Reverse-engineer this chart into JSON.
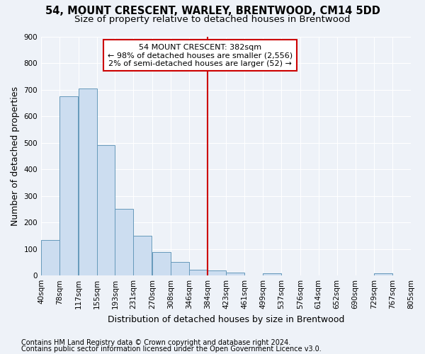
{
  "title": "54, MOUNT CRESCENT, WARLEY, BRENTWOOD, CM14 5DD",
  "subtitle": "Size of property relative to detached houses in Brentwood",
  "xlabel": "Distribution of detached houses by size in Brentwood",
  "ylabel": "Number of detached properties",
  "footnote1": "Contains HM Land Registry data © Crown copyright and database right 2024.",
  "footnote2": "Contains public sector information licensed under the Open Government Licence v3.0.",
  "bin_edges": [
    40,
    78,
    117,
    155,
    193,
    231,
    270,
    308,
    346,
    384,
    423,
    461,
    499,
    537,
    576,
    614,
    652,
    690,
    729,
    767,
    805
  ],
  "bin_labels": [
    "40sqm",
    "78sqm",
    "117sqm",
    "155sqm",
    "193sqm",
    "231sqm",
    "270sqm",
    "308sqm",
    "346sqm",
    "384sqm",
    "423sqm",
    "461sqm",
    "499sqm",
    "537sqm",
    "576sqm",
    "614sqm",
    "652sqm",
    "690sqm",
    "729sqm",
    "767sqm",
    "805sqm"
  ],
  "bar_heights": [
    135,
    675,
    705,
    490,
    250,
    150,
    88,
    50,
    22,
    18,
    10,
    0,
    8,
    0,
    0,
    0,
    0,
    0,
    8,
    0
  ],
  "bar_color": "#ccddf0",
  "bar_edge_color": "#6699bb",
  "vline_x": 384,
  "vline_color": "#cc0000",
  "annotation_text": "54 MOUNT CRESCENT: 382sqm\n← 98% of detached houses are smaller (2,556)\n2% of semi-detached houses are larger (52) →",
  "annotation_box_color": "#ffffff",
  "annotation_box_edge": "#cc0000",
  "ylim": [
    0,
    900
  ],
  "yticks": [
    0,
    100,
    200,
    300,
    400,
    500,
    600,
    700,
    800,
    900
  ],
  "bg_color": "#eef2f8",
  "grid_color": "#ffffff",
  "title_fontsize": 10.5,
  "subtitle_fontsize": 9.5,
  "axis_label_fontsize": 9,
  "tick_fontsize": 7.5,
  "annotation_fontsize": 8,
  "footnote_fontsize": 7
}
